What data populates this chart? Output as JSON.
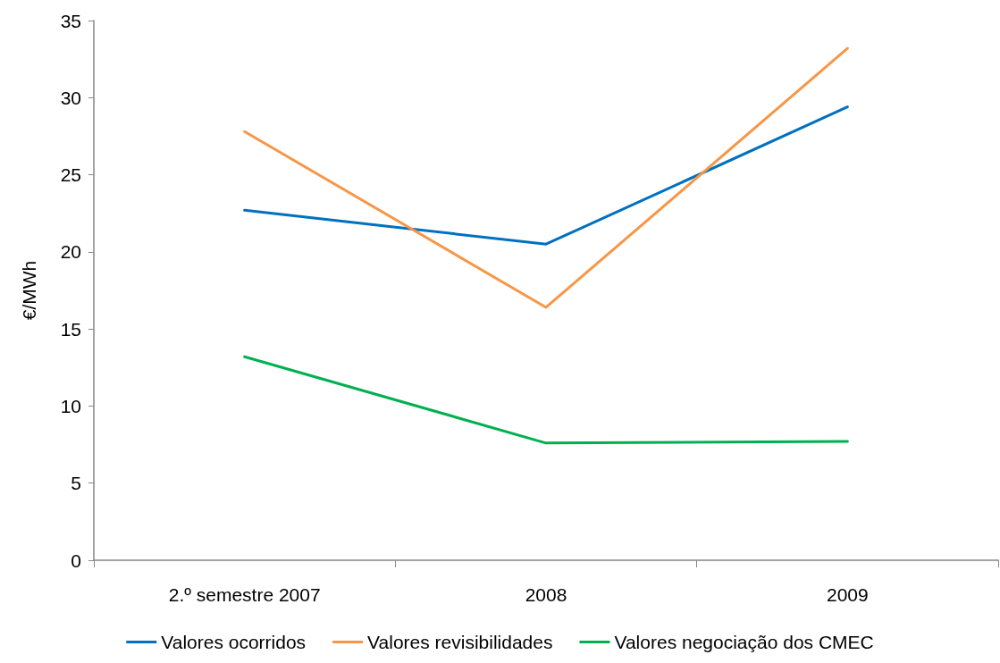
{
  "chart_data": {
    "type": "line",
    "ylabel": "€/MWh",
    "categories": [
      "2.º semestre 2007",
      "2008",
      "2009"
    ],
    "series": [
      {
        "name": "Valores ocorridos",
        "color": "#0070c0",
        "values": [
          22.7,
          20.5,
          29.4
        ]
      },
      {
        "name": "Valores revisibilidades",
        "color": "#f79646",
        "values": [
          27.8,
          16.4,
          33.2
        ]
      },
      {
        "name": "Valores negociação dos CMEC",
        "color": "#00b050",
        "values": [
          13.2,
          7.6,
          7.7
        ]
      }
    ],
    "ylim": [
      0,
      35
    ],
    "yticks": [
      0,
      5,
      10,
      15,
      20,
      25,
      30,
      35
    ],
    "grid": false,
    "legend": "bottom",
    "marker": "none",
    "line_style": "solid"
  }
}
